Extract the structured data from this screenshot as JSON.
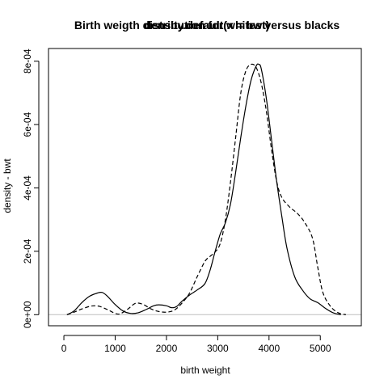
{
  "chart_data": {
    "type": "line",
    "titles": [
      "Birth weigth distribution for whites versus blacks",
      "density.default(x = bwt)",
      "density.default(x = bwt)"
    ],
    "xlabel": "birth weight",
    "ylabel": "density - bwt",
    "xlim": [
      -300,
      5800
    ],
    "ylim": [
      -3.5e-05,
      0.00084
    ],
    "x_ticks": [
      0,
      1000,
      2000,
      3000,
      4000,
      5000
    ],
    "x_tick_labels": [
      "0",
      "1000",
      "2000",
      "3000",
      "4000",
      "5000"
    ],
    "y_ticks": [
      0,
      0.0002,
      0.0004,
      0.0006,
      0.0008
    ],
    "y_tick_labels": [
      "0e+00",
      "2e-04",
      "4e-04",
      "6e-04",
      "8e-04"
    ],
    "baseline_color": "#bebebe",
    "series": [
      {
        "style": "solid",
        "points": [
          [
            60,
            0
          ],
          [
            200,
            1.2e-05
          ],
          [
            350,
            3.8e-05
          ],
          [
            500,
            5.8e-05
          ],
          [
            650,
            6.8e-05
          ],
          [
            750,
            7e-05
          ],
          [
            850,
            5.8e-05
          ],
          [
            1000,
            3.2e-05
          ],
          [
            1150,
            1.2e-05
          ],
          [
            1300,
            4e-06
          ],
          [
            1450,
            6e-06
          ],
          [
            1600,
            1.6e-05
          ],
          [
            1750,
            2.8e-05
          ],
          [
            1850,
            3.1e-05
          ],
          [
            2000,
            2.8e-05
          ],
          [
            2100,
            2.2e-05
          ],
          [
            2200,
            2.6e-05
          ],
          [
            2300,
            4.2e-05
          ],
          [
            2450,
            6.2e-05
          ],
          [
            2600,
            7.8e-05
          ],
          [
            2750,
            9.8e-05
          ],
          [
            2850,
            0.00014
          ],
          [
            2950,
            0.0002
          ],
          [
            3050,
            0.000255
          ],
          [
            3150,
            0.00029
          ],
          [
            3250,
            0.00035
          ],
          [
            3350,
            0.00045
          ],
          [
            3450,
            0.00056
          ],
          [
            3550,
            0.00066
          ],
          [
            3650,
            0.00074
          ],
          [
            3750,
            0.000785
          ],
          [
            3800,
            0.00079
          ],
          [
            3850,
            0.000775
          ],
          [
            3950,
            0.00068
          ],
          [
            4050,
            0.00055
          ],
          [
            4150,
            0.00042
          ],
          [
            4250,
            0.00031
          ],
          [
            4350,
            0.00021
          ],
          [
            4500,
            0.00012
          ],
          [
            4650,
            7.8e-05
          ],
          [
            4800,
            5e-05
          ],
          [
            4950,
            3.8e-05
          ],
          [
            5100,
            2e-05
          ],
          [
            5250,
            6e-06
          ],
          [
            5400,
            0
          ]
        ]
      },
      {
        "style": "dashed",
        "points": [
          [
            60,
            0
          ],
          [
            200,
            8e-06
          ],
          [
            350,
            1.8e-05
          ],
          [
            500,
            2.6e-05
          ],
          [
            600,
            2.8e-05
          ],
          [
            700,
            2.6e-05
          ],
          [
            850,
            1.6e-05
          ],
          [
            1000,
            4e-06
          ],
          [
            1100,
            3e-06
          ],
          [
            1250,
            1.8e-05
          ],
          [
            1400,
            3.6e-05
          ],
          [
            1550,
            3.2e-05
          ],
          [
            1700,
            1.8e-05
          ],
          [
            1850,
            1e-05
          ],
          [
            2000,
            8e-06
          ],
          [
            2150,
            1.4e-05
          ],
          [
            2300,
            3.6e-05
          ],
          [
            2450,
            6.8e-05
          ],
          [
            2600,
            0.00012
          ],
          [
            2750,
            0.000168
          ],
          [
            2850,
            0.000184
          ],
          [
            2950,
            0.000198
          ],
          [
            3050,
            0.000225
          ],
          [
            3150,
            0.0003
          ],
          [
            3250,
            0.00042
          ],
          [
            3350,
            0.00056
          ],
          [
            3450,
            0.0007
          ],
          [
            3550,
            0.00077
          ],
          [
            3650,
            0.00079
          ],
          [
            3750,
            0.00078
          ],
          [
            3850,
            0.00073
          ],
          [
            3950,
            0.00064
          ],
          [
            4050,
            0.00052
          ],
          [
            4150,
            0.00042
          ],
          [
            4250,
            0.00037
          ],
          [
            4400,
            0.00034
          ],
          [
            4550,
            0.00032
          ],
          [
            4700,
            0.00029
          ],
          [
            4850,
            0.00024
          ],
          [
            4950,
            0.00015
          ],
          [
            5050,
            7e-05
          ],
          [
            5200,
            2.6e-05
          ],
          [
            5350,
            6e-06
          ],
          [
            5500,
            0
          ]
        ]
      }
    ]
  }
}
